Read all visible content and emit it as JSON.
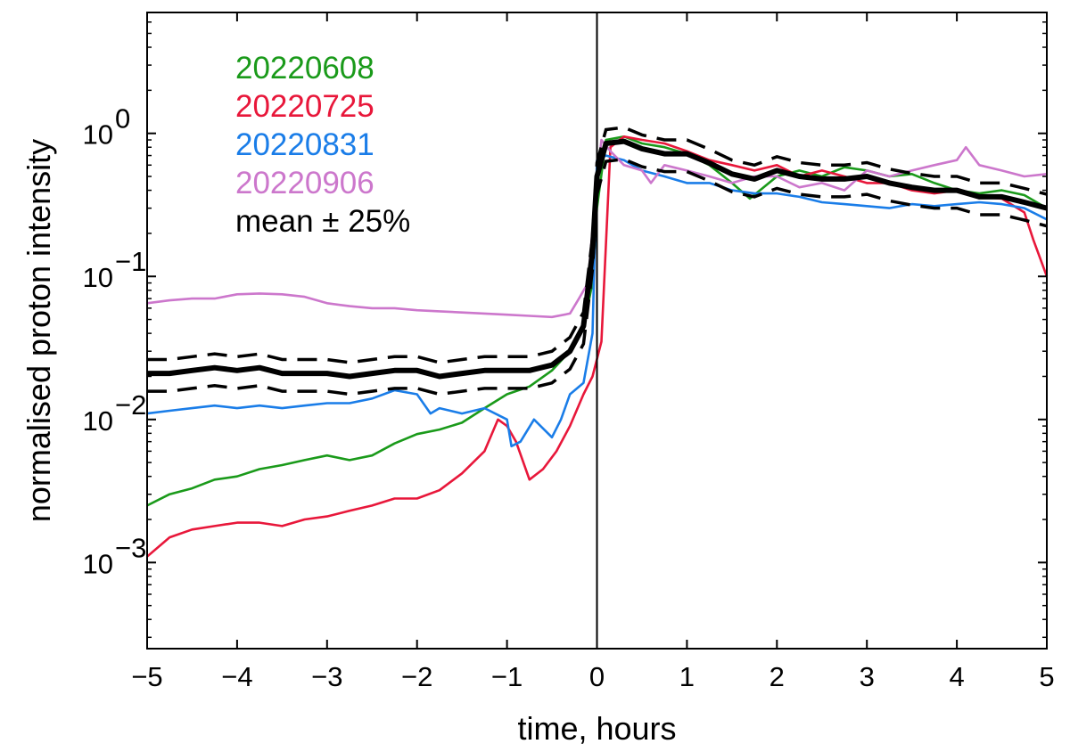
{
  "chart_data": {
    "type": "line",
    "xlabel": "time, hours",
    "ylabel": "normalised proton intensity",
    "xlim": [
      -5,
      5
    ],
    "ylim": [
      0.00025,
      7
    ],
    "yscale": "log",
    "xticks": [
      -5,
      -4,
      -3,
      -2,
      -1,
      0,
      1,
      2,
      3,
      4,
      5
    ],
    "xtick_labels": [
      "−5",
      "−4",
      "−3",
      "−2",
      "−1",
      "0",
      "1",
      "2",
      "3",
      "4",
      "5"
    ],
    "yticks": [
      0.001,
      0.01,
      0.1,
      1
    ],
    "ytick_base": "10",
    "ytick_exponents": [
      "−3",
      "−2",
      "−1",
      "0"
    ],
    "vline_x": 0,
    "legend_position": "top-left",
    "series": [
      {
        "name": "20220608",
        "color": "#1a9a1a",
        "x": [
          -5,
          -4.75,
          -4.5,
          -4.25,
          -4,
          -3.75,
          -3.5,
          -3.25,
          -3,
          -2.75,
          -2.5,
          -2.25,
          -2,
          -1.75,
          -1.5,
          -1.25,
          -1,
          -0.75,
          -0.5,
          -0.3,
          -0.15,
          -0.05,
          0,
          0.1,
          0.3,
          0.5,
          0.75,
          1,
          1.25,
          1.5,
          1.7,
          2,
          2.25,
          2.5,
          2.75,
          3,
          3.25,
          3.5,
          3.75,
          4,
          4.25,
          4.5,
          4.75,
          5
        ],
        "y": [
          0.0025,
          0.003,
          0.0033,
          0.0038,
          0.004,
          0.0045,
          0.0048,
          0.0052,
          0.0056,
          0.0052,
          0.0056,
          0.0068,
          0.0079,
          0.0085,
          0.0095,
          0.012,
          0.015,
          0.017,
          0.022,
          0.03,
          0.045,
          0.09,
          0.3,
          0.9,
          0.95,
          0.85,
          0.8,
          0.72,
          0.6,
          0.45,
          0.35,
          0.5,
          0.55,
          0.5,
          0.58,
          0.55,
          0.5,
          0.52,
          0.45,
          0.4,
          0.38,
          0.4,
          0.37,
          0.3
        ]
      },
      {
        "name": "20220725",
        "color": "#e8173a",
        "x": [
          -5,
          -4.75,
          -4.5,
          -4.25,
          -4,
          -3.75,
          -3.5,
          -3.25,
          -3,
          -2.75,
          -2.5,
          -2.25,
          -2,
          -1.75,
          -1.5,
          -1.25,
          -1.1,
          -1,
          -0.9,
          -0.75,
          -0.6,
          -0.45,
          -0.3,
          -0.15,
          -0.05,
          0.05,
          0.15,
          0.3,
          0.5,
          0.75,
          1,
          1.25,
          1.5,
          1.75,
          2,
          2.25,
          2.5,
          2.75,
          3,
          3.25,
          3.5,
          3.75,
          4,
          4.25,
          4.5,
          4.75,
          4.85,
          5
        ],
        "y": [
          0.0011,
          0.0015,
          0.0017,
          0.0018,
          0.0019,
          0.0019,
          0.0018,
          0.002,
          0.0021,
          0.0023,
          0.0025,
          0.0028,
          0.0028,
          0.0032,
          0.0042,
          0.006,
          0.01,
          0.009,
          0.007,
          0.0038,
          0.0045,
          0.006,
          0.009,
          0.015,
          0.02,
          0.035,
          0.8,
          0.95,
          0.9,
          0.85,
          0.75,
          0.65,
          0.6,
          0.55,
          0.6,
          0.5,
          0.55,
          0.5,
          0.45,
          0.45,
          0.4,
          0.38,
          0.4,
          0.36,
          0.35,
          0.28,
          0.18,
          0.1
        ]
      },
      {
        "name": "20220831",
        "color": "#1a7de8",
        "x": [
          -5,
          -4.75,
          -4.5,
          -4.25,
          -4,
          -3.75,
          -3.5,
          -3.25,
          -3,
          -2.75,
          -2.5,
          -2.25,
          -2,
          -1.85,
          -1.75,
          -1.5,
          -1.25,
          -1,
          -0.95,
          -0.85,
          -0.7,
          -0.5,
          -0.4,
          -0.3,
          -0.15,
          -0.05,
          0,
          0.1,
          0.3,
          0.5,
          0.75,
          1,
          1.25,
          1.5,
          1.75,
          2,
          2.25,
          2.5,
          2.75,
          3,
          3.25,
          3.5,
          3.75,
          4,
          4.25,
          4.5,
          4.75,
          5
        ],
        "y": [
          0.011,
          0.0115,
          0.012,
          0.0125,
          0.012,
          0.0125,
          0.012,
          0.0125,
          0.013,
          0.013,
          0.014,
          0.016,
          0.015,
          0.011,
          0.012,
          0.011,
          0.012,
          0.01,
          0.0065,
          0.007,
          0.01,
          0.0075,
          0.01,
          0.015,
          0.018,
          0.04,
          0.65,
          0.7,
          0.65,
          0.55,
          0.5,
          0.45,
          0.45,
          0.4,
          0.38,
          0.38,
          0.36,
          0.33,
          0.32,
          0.31,
          0.3,
          0.32,
          0.31,
          0.32,
          0.33,
          0.32,
          0.3,
          0.25
        ]
      },
      {
        "name": "20220906",
        "color": "#cc77cc",
        "x": [
          -5,
          -4.75,
          -4.5,
          -4.25,
          -4,
          -3.75,
          -3.5,
          -3.25,
          -3,
          -2.75,
          -2.5,
          -2.25,
          -2,
          -1.75,
          -1.5,
          -1.25,
          -1,
          -0.75,
          -0.5,
          -0.3,
          -0.2,
          -0.1,
          -0.03,
          0.05,
          0.15,
          0.3,
          0.5,
          0.6,
          0.75,
          1,
          1.25,
          1.5,
          1.75,
          2,
          2.25,
          2.5,
          2.75,
          3,
          3.25,
          3.5,
          3.75,
          4,
          4.1,
          4.25,
          4.5,
          4.75,
          5
        ],
        "y": [
          0.065,
          0.068,
          0.07,
          0.07,
          0.075,
          0.076,
          0.075,
          0.072,
          0.065,
          0.062,
          0.06,
          0.06,
          0.058,
          0.057,
          0.056,
          0.055,
          0.054,
          0.053,
          0.052,
          0.055,
          0.07,
          0.09,
          0.3,
          0.9,
          0.75,
          0.6,
          0.55,
          0.45,
          0.6,
          0.55,
          0.5,
          0.45,
          0.5,
          0.5,
          0.42,
          0.45,
          0.4,
          0.55,
          0.5,
          0.55,
          0.6,
          0.65,
          0.8,
          0.6,
          0.55,
          0.5,
          0.52
        ]
      },
      {
        "name": "mean ± 25%",
        "color": "#000000",
        "x": [
          -5,
          -4.75,
          -4.5,
          -4.25,
          -4,
          -3.75,
          -3.5,
          -3.25,
          -3,
          -2.75,
          -2.5,
          -2.25,
          -2,
          -1.75,
          -1.5,
          -1.25,
          -1,
          -0.75,
          -0.5,
          -0.3,
          -0.15,
          -0.05,
          0,
          0.1,
          0.3,
          0.5,
          0.75,
          1,
          1.25,
          1.5,
          1.75,
          2,
          2.25,
          2.5,
          2.75,
          3,
          3.25,
          3.5,
          3.75,
          4,
          4.25,
          4.5,
          4.75,
          5
        ],
        "y": [
          0.021,
          0.021,
          0.022,
          0.023,
          0.022,
          0.023,
          0.021,
          0.021,
          0.021,
          0.02,
          0.021,
          0.022,
          0.022,
          0.02,
          0.021,
          0.022,
          0.022,
          0.022,
          0.024,
          0.03,
          0.045,
          0.15,
          0.5,
          0.85,
          0.88,
          0.78,
          0.72,
          0.72,
          0.62,
          0.52,
          0.48,
          0.55,
          0.5,
          0.48,
          0.48,
          0.5,
          0.45,
          0.42,
          0.4,
          0.4,
          0.36,
          0.36,
          0.33,
          0.3
        ],
        "band_fraction": 0.25
      }
    ]
  }
}
